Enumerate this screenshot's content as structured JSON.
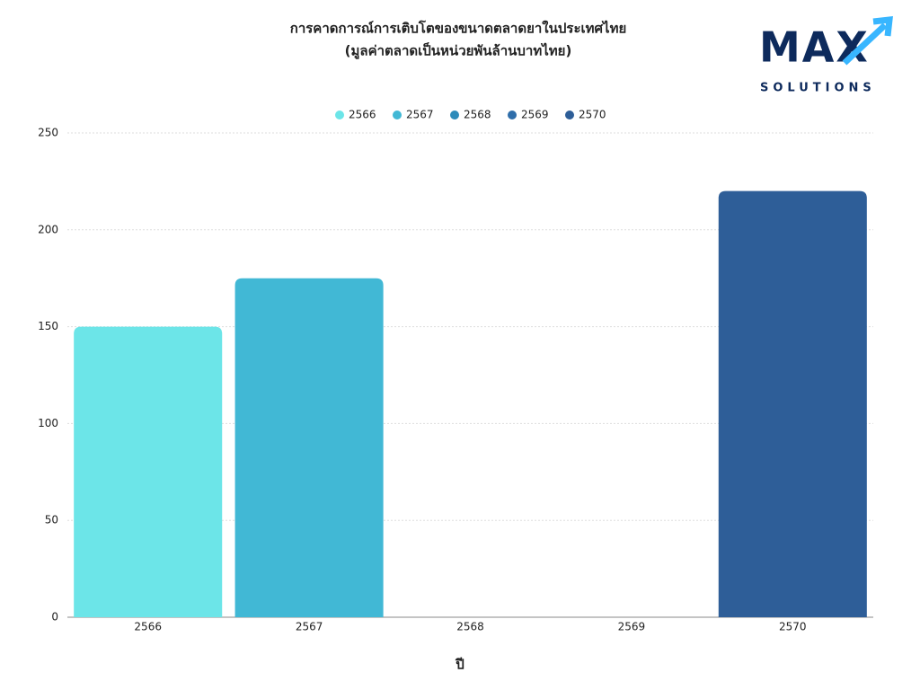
{
  "chart_data": {
    "type": "bar",
    "title": "การคาดการณ์การเติบโตของขนาดตลาดยาในประเทศไทย",
    "subtitle": "(มูลค่าตลาดเป็นหน่วยพันล้านบาทไทย)",
    "x_label": "ปี",
    "categories": [
      "2566",
      "2567",
      "2568",
      "2569",
      "2570"
    ],
    "series": [
      {
        "name": "2566",
        "color": "#6ce5e8",
        "values": [
          150,
          null,
          null,
          null,
          null
        ]
      },
      {
        "name": "2567",
        "color": "#41b8d5",
        "values": [
          null,
          175,
          null,
          null,
          null
        ]
      },
      {
        "name": "2568",
        "color": "#2d8bba",
        "values": [
          null,
          null,
          null,
          null,
          null
        ]
      },
      {
        "name": "2569",
        "color": "#2f6eaa",
        "values": [
          null,
          null,
          null,
          null,
          null
        ]
      },
      {
        "name": "2570",
        "color": "#2e5e98",
        "values": [
          null,
          null,
          null,
          null,
          220
        ]
      }
    ],
    "ylim": [
      0,
      250
    ],
    "yticks": [
      0,
      50,
      100,
      150,
      200,
      250
    ],
    "grid": true,
    "legend": "top"
  },
  "logo": {
    "main": "MAX",
    "sub": "SOLUTIONS"
  }
}
